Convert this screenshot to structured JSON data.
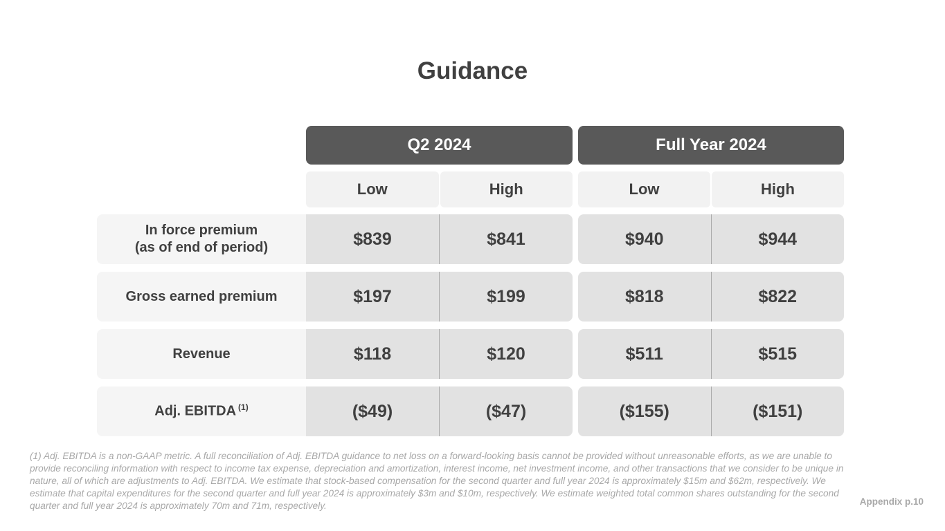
{
  "page": {
    "title": "Guidance",
    "appendix_label": "Appendix p.10"
  },
  "table": {
    "groups": [
      {
        "label": "Q2 2024",
        "subcols": [
          "Low",
          "High"
        ]
      },
      {
        "label": "Full Year 2024",
        "subcols": [
          "Low",
          "High"
        ]
      }
    ],
    "rows": [
      {
        "label_line1": "In force premium",
        "label_line2": "(as of end of period)",
        "values": [
          "$839",
          "$841",
          "$940",
          "$944"
        ]
      },
      {
        "label_line1": "Gross earned premium",
        "values": [
          "$197",
          "$199",
          "$818",
          "$822"
        ]
      },
      {
        "label_line1": "Revenue",
        "values": [
          "$118",
          "$120",
          "$511",
          "$515"
        ]
      },
      {
        "label_line1": "Adj. EBITDA",
        "label_note": "(1)",
        "values": [
          "($49)",
          "($47)",
          "($155)",
          "($151)"
        ]
      }
    ]
  },
  "footnote": "(1) Adj. EBITDA is a non-GAAP metric. A full reconciliation of Adj. EBITDA guidance to net loss on a forward-looking basis cannot be provided without unreasonable efforts, as we are unable to provide reconciling information with respect to income tax expense, depreciation and amortization, interest income, net investment income, and other transactions that we consider to be unique in nature, all of which are adjustments to Adj. EBITDA. We estimate that stock-based compensation for the second quarter and full year 2024 is approximately $15m and $62m, respectively. We estimate that capital expenditures for the second quarter and full year 2024 is approximately $3m and $10m, respectively. We estimate weighted total common shares outstanding for the second quarter and full year 2024 is approximately 70m and 71m, respectively.",
  "colors": {
    "header_bg": "#595959",
    "subheader_bg": "#f2f2f2",
    "label_bg": "#f5f5f5",
    "cell_bg": "#e2e2e2",
    "text": "#404040",
    "footnote_text": "#a8a8a8"
  }
}
